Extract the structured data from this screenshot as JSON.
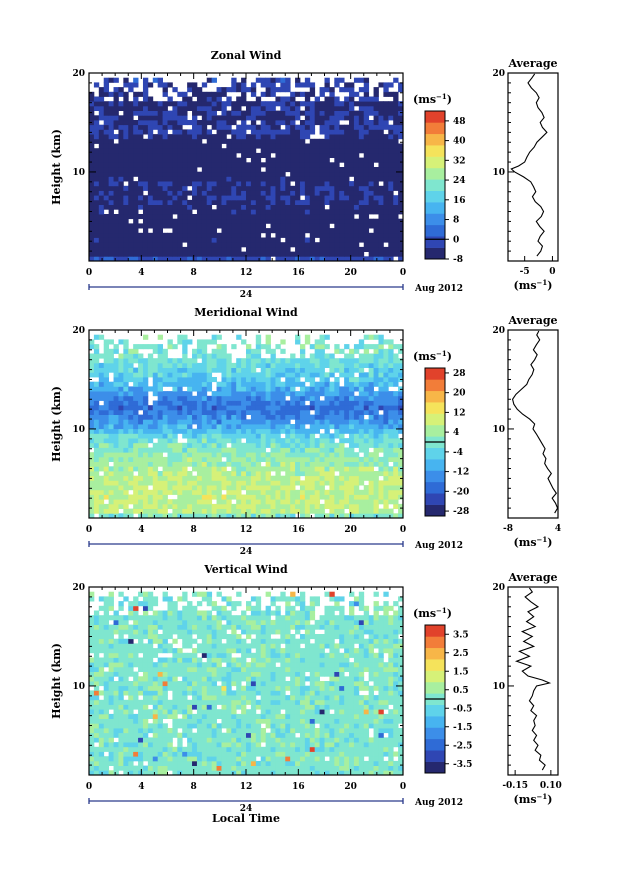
{
  "figure": {
    "date_label": "Aug 2012",
    "xlabel": "Local Time"
  },
  "chart_data": [
    {
      "type": "heatmap",
      "title": "Zonal Wind",
      "ylabel": "Height (km)",
      "xlabel": "",
      "ylim": [
        1,
        20
      ],
      "xlim": [
        0,
        24
      ],
      "x_ticks": [
        "0",
        "4",
        "8",
        "12",
        "16",
        "20",
        "0"
      ],
      "y_ticks": [
        "10",
        "20"
      ],
      "day_label": "24",
      "colorbar": {
        "unit": "(ms",
        "unit_exp": "−1",
        "unit_close": ")",
        "ticks": [
          "48",
          "40",
          "32",
          "24",
          "16",
          "8",
          "0",
          "-8"
        ],
        "range": [
          -8,
          52
        ]
      },
      "height_profile": [
        [
          1.5,
          -8
        ],
        [
          3,
          -6
        ],
        [
          4.5,
          -7.5
        ],
        [
          6,
          -6
        ],
        [
          7.5,
          -4
        ],
        [
          9,
          -5
        ],
        [
          10,
          -8
        ],
        [
          11,
          -15
        ],
        [
          12,
          -10
        ],
        [
          13,
          -8
        ],
        [
          14,
          -2
        ],
        [
          15,
          -3
        ],
        [
          16,
          -4
        ],
        [
          17,
          -5
        ],
        [
          18,
          -3
        ],
        [
          19,
          -1.5
        ],
        [
          19.8,
          0
        ]
      ],
      "cells_note": "",
      "average": {
        "title": "Average",
        "xlabel": "(ms",
        "xlabel_exp": "−1",
        "xlabel_close": ")",
        "x_ticks": [
          "-5",
          "0"
        ],
        "xlim": [
          -8,
          1
        ],
        "profile": [
          [
            1.5,
            -2.8
          ],
          [
            2,
            -2.1
          ],
          [
            2.5,
            -1.8
          ],
          [
            3,
            -2.6
          ],
          [
            3.5,
            -2.2
          ],
          [
            4,
            -1.5
          ],
          [
            4.5,
            -2.3
          ],
          [
            5,
            -2.9
          ],
          [
            5.5,
            -2.0
          ],
          [
            6,
            -1.6
          ],
          [
            6.5,
            -2.1
          ],
          [
            7,
            -3.1
          ],
          [
            7.5,
            -3.6
          ],
          [
            8,
            -3.0
          ],
          [
            8.5,
            -3.4
          ],
          [
            9,
            -3.9
          ],
          [
            9.5,
            -5.2
          ],
          [
            10,
            -6.8
          ],
          [
            10.3,
            -7.4
          ],
          [
            10.6,
            -6.1
          ],
          [
            11,
            -5.0
          ],
          [
            11.5,
            -4.6
          ],
          [
            12,
            -4.1
          ],
          [
            12.5,
            -3.3
          ],
          [
            13,
            -2.8
          ],
          [
            13.5,
            -1.9
          ],
          [
            14,
            -1.0
          ],
          [
            14.5,
            -1.8
          ],
          [
            15,
            -2.2
          ],
          [
            15.5,
            -1.5
          ],
          [
            16,
            -1.9
          ],
          [
            16.5,
            -2.6
          ],
          [
            17,
            -2.9
          ],
          [
            17.5,
            -2.4
          ],
          [
            18,
            -2.9
          ],
          [
            18.5,
            -3.8
          ],
          [
            19,
            -4.4
          ],
          [
            19.5,
            -3.7
          ],
          [
            19.9,
            -3.2
          ]
        ]
      }
    },
    {
      "type": "heatmap",
      "title": "Meridional Wind",
      "ylabel": "Height (km)",
      "xlabel": "",
      "ylim": [
        1,
        20
      ],
      "xlim": [
        0,
        24
      ],
      "x_ticks": [
        "0",
        "4",
        "8",
        "12",
        "16",
        "20",
        "0"
      ],
      "y_ticks": [
        "10",
        "20"
      ],
      "day_label": "24",
      "colorbar": {
        "unit": "(ms",
        "unit_exp": "−1",
        "unit_close": ")",
        "ticks": [
          "28",
          "20",
          "12",
          "4",
          "-4",
          "-12",
          "-20",
          "-28"
        ],
        "range": [
          -30,
          30
        ]
      },
      "height_profile": [
        [
          1.5,
          6
        ],
        [
          3,
          8
        ],
        [
          4.5,
          7
        ],
        [
          6,
          5
        ],
        [
          7.5,
          2
        ],
        [
          9,
          -2
        ],
        [
          10,
          -8
        ],
        [
          11,
          -14
        ],
        [
          12,
          -18
        ],
        [
          13,
          -15
        ],
        [
          14,
          -10
        ],
        [
          15,
          -6
        ],
        [
          16,
          -4
        ],
        [
          17,
          -2
        ],
        [
          18,
          0
        ],
        [
          19,
          -1
        ],
        [
          19.8,
          0
        ]
      ],
      "average": {
        "title": "Average",
        "xlabel": "(ms",
        "xlabel_exp": "−1",
        "xlabel_close": ")",
        "x_ticks": [
          "-8",
          "4"
        ],
        "xlim": [
          -8,
          4
        ],
        "profile": [
          [
            1.5,
            3.2
          ],
          [
            2,
            3.9
          ],
          [
            2.5,
            3.4
          ],
          [
            3,
            2.6
          ],
          [
            3.5,
            3.6
          ],
          [
            4,
            2.8
          ],
          [
            4.5,
            2.2
          ],
          [
            5,
            1.6
          ],
          [
            5.5,
            2.4
          ],
          [
            6,
            1.5
          ],
          [
            6.5,
            0.8
          ],
          [
            7,
            1.1
          ],
          [
            7.5,
            0.4
          ],
          [
            8,
            0.9
          ],
          [
            8.5,
            0.2
          ],
          [
            9,
            -0.5
          ],
          [
            9.5,
            -1.2
          ],
          [
            10,
            -2.0
          ],
          [
            10.5,
            -1.6
          ],
          [
            11,
            -2.8
          ],
          [
            11.5,
            -4.5
          ],
          [
            12,
            -5.8
          ],
          [
            12.5,
            -6.6
          ],
          [
            13,
            -6.9
          ],
          [
            13.5,
            -6.1
          ],
          [
            14,
            -4.8
          ],
          [
            14.5,
            -3.5
          ],
          [
            15,
            -3.0
          ],
          [
            15.5,
            -2.2
          ],
          [
            16,
            -1.8
          ],
          [
            16.5,
            -2.5
          ],
          [
            17,
            -1.6
          ],
          [
            17.5,
            -1.0
          ],
          [
            18,
            -1.9
          ],
          [
            18.5,
            -1.2
          ],
          [
            19,
            -0.4
          ],
          [
            19.5,
            -1.1
          ],
          [
            19.9,
            -0.6
          ]
        ]
      }
    },
    {
      "type": "heatmap",
      "title": "Vertical Wind",
      "ylabel": "Height (km)",
      "xlabel": "Local Time",
      "ylim": [
        1,
        20
      ],
      "xlim": [
        0,
        24
      ],
      "x_ticks": [
        "0",
        "4",
        "8",
        "12",
        "16",
        "20",
        "0"
      ],
      "y_ticks": [
        "10",
        "20"
      ],
      "day_label": "24",
      "colorbar": {
        "unit": "(ms",
        "unit_exp": "−1",
        "unit_close": ")",
        "ticks": [
          "3.5",
          "2.5",
          "1.5",
          "0.5",
          "-0.5",
          "-1.5",
          "-2.5",
          "-3.5"
        ],
        "range": [
          -4,
          4
        ]
      },
      "height_profile": [
        [
          1.5,
          0
        ],
        [
          19.8,
          0
        ]
      ],
      "average": {
        "title": "Average",
        "xlabel": "(ms",
        "xlabel_exp": "−1",
        "xlabel_close": ")",
        "x_ticks": [
          "-0.15",
          "0.10"
        ],
        "xlim": [
          -0.2,
          0.15
        ],
        "profile": [
          [
            1.5,
            0.04
          ],
          [
            2,
            0.06
          ],
          [
            2.5,
            0.02
          ],
          [
            3,
            0.03
          ],
          [
            3.5,
            -0.01
          ],
          [
            4,
            0.01
          ],
          [
            4.5,
            -0.02
          ],
          [
            5,
            0.0
          ],
          [
            5.5,
            -0.03
          ],
          [
            6,
            -0.01
          ],
          [
            6.5,
            -0.02
          ],
          [
            7,
            0.0
          ],
          [
            7.5,
            -0.04
          ],
          [
            8,
            -0.02
          ],
          [
            8.5,
            -0.05
          ],
          [
            9,
            -0.03
          ],
          [
            9.5,
            -0.02
          ],
          [
            10,
            0.0
          ],
          [
            10.3,
            0.09
          ],
          [
            10.6,
            0.04
          ],
          [
            11,
            -0.06
          ],
          [
            11.5,
            -0.1
          ],
          [
            12,
            -0.04
          ],
          [
            12.5,
            -0.14
          ],
          [
            13,
            -0.05
          ],
          [
            13.5,
            -0.12
          ],
          [
            14,
            -0.02
          ],
          [
            14.5,
            -0.09
          ],
          [
            15,
            -0.03
          ],
          [
            15.5,
            -0.1
          ],
          [
            16,
            -0.01
          ],
          [
            16.5,
            -0.07
          ],
          [
            17,
            -0.02
          ],
          [
            17.5,
            -0.06
          ],
          [
            18,
            0.01
          ],
          [
            18.5,
            -0.04
          ],
          [
            19,
            -0.08
          ],
          [
            19.5,
            -0.03
          ],
          [
            19.9,
            -0.05
          ]
        ]
      }
    }
  ]
}
